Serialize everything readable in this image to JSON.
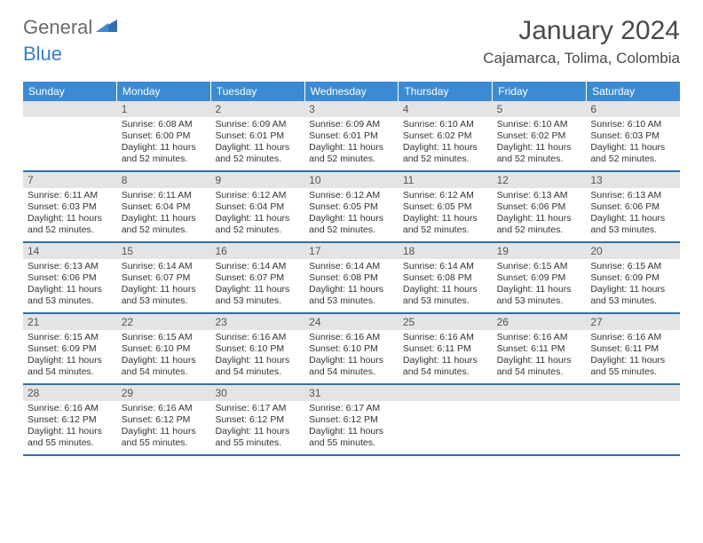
{
  "logo": {
    "part1": "General",
    "part2": "Blue"
  },
  "title": "January 2024",
  "location": "Cajamarca, Tolima, Colombia",
  "colors": {
    "header_bg": "#3b8bd4",
    "header_text": "#ffffff",
    "week_border": "#2f6fa8",
    "daynum_bg": "#e4e4e4",
    "body_text": "#333333",
    "logo_gray": "#6a6a6a",
    "logo_blue": "#3b7fc4"
  },
  "days_of_week": [
    "Sunday",
    "Monday",
    "Tuesday",
    "Wednesday",
    "Thursday",
    "Friday",
    "Saturday"
  ],
  "weeks": [
    [
      {
        "n": ""
      },
      {
        "n": "1",
        "sr": "Sunrise: 6:08 AM",
        "ss": "Sunset: 6:00 PM",
        "dl1": "Daylight: 11 hours",
        "dl2": "and 52 minutes."
      },
      {
        "n": "2",
        "sr": "Sunrise: 6:09 AM",
        "ss": "Sunset: 6:01 PM",
        "dl1": "Daylight: 11 hours",
        "dl2": "and 52 minutes."
      },
      {
        "n": "3",
        "sr": "Sunrise: 6:09 AM",
        "ss": "Sunset: 6:01 PM",
        "dl1": "Daylight: 11 hours",
        "dl2": "and 52 minutes."
      },
      {
        "n": "4",
        "sr": "Sunrise: 6:10 AM",
        "ss": "Sunset: 6:02 PM",
        "dl1": "Daylight: 11 hours",
        "dl2": "and 52 minutes."
      },
      {
        "n": "5",
        "sr": "Sunrise: 6:10 AM",
        "ss": "Sunset: 6:02 PM",
        "dl1": "Daylight: 11 hours",
        "dl2": "and 52 minutes."
      },
      {
        "n": "6",
        "sr": "Sunrise: 6:10 AM",
        "ss": "Sunset: 6:03 PM",
        "dl1": "Daylight: 11 hours",
        "dl2": "and 52 minutes."
      }
    ],
    [
      {
        "n": "7",
        "sr": "Sunrise: 6:11 AM",
        "ss": "Sunset: 6:03 PM",
        "dl1": "Daylight: 11 hours",
        "dl2": "and 52 minutes."
      },
      {
        "n": "8",
        "sr": "Sunrise: 6:11 AM",
        "ss": "Sunset: 6:04 PM",
        "dl1": "Daylight: 11 hours",
        "dl2": "and 52 minutes."
      },
      {
        "n": "9",
        "sr": "Sunrise: 6:12 AM",
        "ss": "Sunset: 6:04 PM",
        "dl1": "Daylight: 11 hours",
        "dl2": "and 52 minutes."
      },
      {
        "n": "10",
        "sr": "Sunrise: 6:12 AM",
        "ss": "Sunset: 6:05 PM",
        "dl1": "Daylight: 11 hours",
        "dl2": "and 52 minutes."
      },
      {
        "n": "11",
        "sr": "Sunrise: 6:12 AM",
        "ss": "Sunset: 6:05 PM",
        "dl1": "Daylight: 11 hours",
        "dl2": "and 52 minutes."
      },
      {
        "n": "12",
        "sr": "Sunrise: 6:13 AM",
        "ss": "Sunset: 6:06 PM",
        "dl1": "Daylight: 11 hours",
        "dl2": "and 52 minutes."
      },
      {
        "n": "13",
        "sr": "Sunrise: 6:13 AM",
        "ss": "Sunset: 6:06 PM",
        "dl1": "Daylight: 11 hours",
        "dl2": "and 53 minutes."
      }
    ],
    [
      {
        "n": "14",
        "sr": "Sunrise: 6:13 AM",
        "ss": "Sunset: 6:06 PM",
        "dl1": "Daylight: 11 hours",
        "dl2": "and 53 minutes."
      },
      {
        "n": "15",
        "sr": "Sunrise: 6:14 AM",
        "ss": "Sunset: 6:07 PM",
        "dl1": "Daylight: 11 hours",
        "dl2": "and 53 minutes."
      },
      {
        "n": "16",
        "sr": "Sunrise: 6:14 AM",
        "ss": "Sunset: 6:07 PM",
        "dl1": "Daylight: 11 hours",
        "dl2": "and 53 minutes."
      },
      {
        "n": "17",
        "sr": "Sunrise: 6:14 AM",
        "ss": "Sunset: 6:08 PM",
        "dl1": "Daylight: 11 hours",
        "dl2": "and 53 minutes."
      },
      {
        "n": "18",
        "sr": "Sunrise: 6:14 AM",
        "ss": "Sunset: 6:08 PM",
        "dl1": "Daylight: 11 hours",
        "dl2": "and 53 minutes."
      },
      {
        "n": "19",
        "sr": "Sunrise: 6:15 AM",
        "ss": "Sunset: 6:09 PM",
        "dl1": "Daylight: 11 hours",
        "dl2": "and 53 minutes."
      },
      {
        "n": "20",
        "sr": "Sunrise: 6:15 AM",
        "ss": "Sunset: 6:09 PM",
        "dl1": "Daylight: 11 hours",
        "dl2": "and 53 minutes."
      }
    ],
    [
      {
        "n": "21",
        "sr": "Sunrise: 6:15 AM",
        "ss": "Sunset: 6:09 PM",
        "dl1": "Daylight: 11 hours",
        "dl2": "and 54 minutes."
      },
      {
        "n": "22",
        "sr": "Sunrise: 6:15 AM",
        "ss": "Sunset: 6:10 PM",
        "dl1": "Daylight: 11 hours",
        "dl2": "and 54 minutes."
      },
      {
        "n": "23",
        "sr": "Sunrise: 6:16 AM",
        "ss": "Sunset: 6:10 PM",
        "dl1": "Daylight: 11 hours",
        "dl2": "and 54 minutes."
      },
      {
        "n": "24",
        "sr": "Sunrise: 6:16 AM",
        "ss": "Sunset: 6:10 PM",
        "dl1": "Daylight: 11 hours",
        "dl2": "and 54 minutes."
      },
      {
        "n": "25",
        "sr": "Sunrise: 6:16 AM",
        "ss": "Sunset: 6:11 PM",
        "dl1": "Daylight: 11 hours",
        "dl2": "and 54 minutes."
      },
      {
        "n": "26",
        "sr": "Sunrise: 6:16 AM",
        "ss": "Sunset: 6:11 PM",
        "dl1": "Daylight: 11 hours",
        "dl2": "and 54 minutes."
      },
      {
        "n": "27",
        "sr": "Sunrise: 6:16 AM",
        "ss": "Sunset: 6:11 PM",
        "dl1": "Daylight: 11 hours",
        "dl2": "and 55 minutes."
      }
    ],
    [
      {
        "n": "28",
        "sr": "Sunrise: 6:16 AM",
        "ss": "Sunset: 6:12 PM",
        "dl1": "Daylight: 11 hours",
        "dl2": "and 55 minutes."
      },
      {
        "n": "29",
        "sr": "Sunrise: 6:16 AM",
        "ss": "Sunset: 6:12 PM",
        "dl1": "Daylight: 11 hours",
        "dl2": "and 55 minutes."
      },
      {
        "n": "30",
        "sr": "Sunrise: 6:17 AM",
        "ss": "Sunset: 6:12 PM",
        "dl1": "Daylight: 11 hours",
        "dl2": "and 55 minutes."
      },
      {
        "n": "31",
        "sr": "Sunrise: 6:17 AM",
        "ss": "Sunset: 6:12 PM",
        "dl1": "Daylight: 11 hours",
        "dl2": "and 55 minutes."
      },
      {
        "n": ""
      },
      {
        "n": ""
      },
      {
        "n": ""
      }
    ]
  ]
}
